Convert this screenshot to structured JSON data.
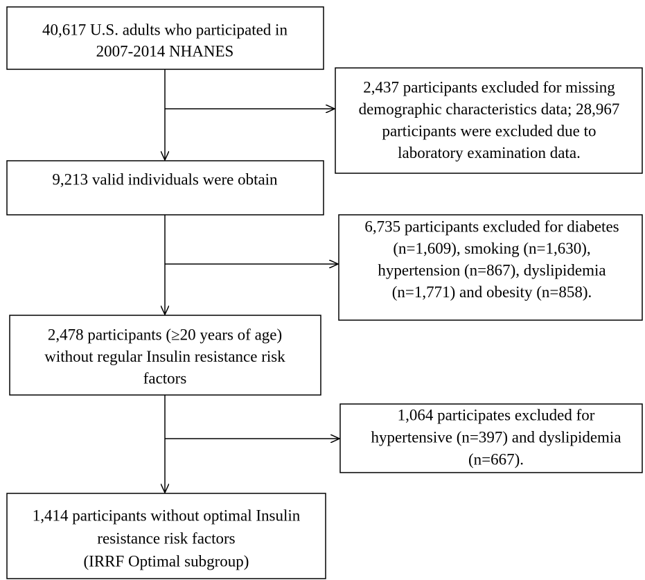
{
  "nodes": [
    {
      "lines": [
        "40,617 U.S. adults who participated in",
        "2007-2014 NHANES"
      ]
    },
    {
      "lines": [
        "2,437 participants excluded for missing",
        "demographic characteristics data; 28,967",
        "participants were excluded due to",
        "laboratory examination data."
      ]
    },
    {
      "lines": [
        "9,213 valid individuals were obtain"
      ]
    },
    {
      "lines": [
        "6,735 participants excluded for diabetes",
        "(n=1,609), smoking (n=1,630),",
        "hypertension (n=867), dyslipidemia",
        "(n=1,771) and obesity (n=858)."
      ]
    },
    {
      "lines": [
        "2,478 participants (≥20 years of age)",
        "without regular Insulin resistance risk",
        "factors"
      ]
    },
    {
      "lines": [
        "1,064 participates excluded for",
        "hypertensive (n=397) and dyslipidemia",
        "(n=667)."
      ]
    },
    {
      "lines": [
        "1,414 participants without optimal Insulin",
        "resistance risk factors",
        "(IRRF Optimal subgroup)"
      ]
    }
  ]
}
